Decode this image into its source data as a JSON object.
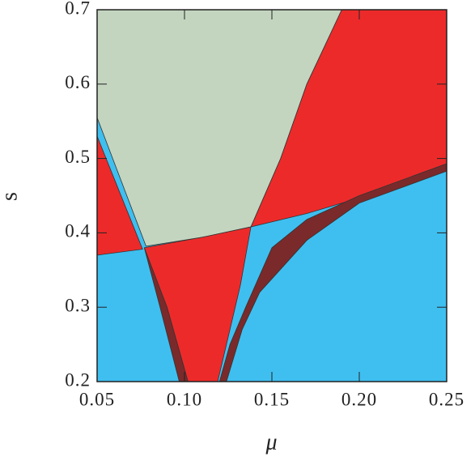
{
  "chart_data": {
    "type": "region",
    "x_label": "μ",
    "y_label": "s",
    "xlim": [
      0.05,
      0.25
    ],
    "ylim": [
      0.2,
      0.7
    ],
    "xticks": [
      {
        "value": 0.05,
        "label": "0.05"
      },
      {
        "value": 0.1,
        "label": "0.10"
      },
      {
        "value": 0.15,
        "label": "0.15"
      },
      {
        "value": 0.2,
        "label": "0.20"
      },
      {
        "value": 0.25,
        "label": "0.25"
      }
    ],
    "yticks": [
      0.2,
      0.3,
      0.4,
      0.5,
      0.6,
      0.7
    ],
    "regions": [
      {
        "color": "#3fbff0",
        "x": [
          0.05,
          0.25,
          0.25,
          0.05
        ],
        "y": [
          0.2,
          0.2,
          0.7,
          0.7
        ]
      },
      {
        "color": "#c3d5bf",
        "x": [
          0.05,
          0.05,
          0.19,
          0.17,
          0.155,
          0.138,
          0.11,
          0.078
        ],
        "y": [
          0.555,
          0.7,
          0.7,
          0.6,
          0.5,
          0.408,
          0.394,
          0.382
        ]
      },
      {
        "color": "#ed2a2a",
        "x": [
          0.19,
          0.25,
          0.25,
          0.2,
          0.17,
          0.138,
          0.155,
          0.17
        ],
        "y": [
          0.7,
          0.7,
          0.49,
          0.447,
          0.426,
          0.408,
          0.5,
          0.6
        ]
      },
      {
        "color": "#ed2a2a",
        "x": [
          0.05,
          0.05,
          0.076
        ],
        "y": [
          0.37,
          0.53,
          0.378
        ]
      },
      {
        "color": "#ed2a2a",
        "x": [
          0.077,
          0.11,
          0.138,
          0.132,
          0.125,
          0.119,
          0.102,
          0.09
        ],
        "y": [
          0.38,
          0.394,
          0.408,
          0.33,
          0.26,
          0.2,
          0.2,
          0.3
        ]
      },
      {
        "color": "#7a2a2a",
        "x": [
          0.077,
          0.09,
          0.102,
          0.097,
          0.086
        ],
        "y": [
          0.38,
          0.3,
          0.2,
          0.2,
          0.3
        ]
      },
      {
        "color": "#7a2a2a",
        "x": [
          0.124,
          0.133,
          0.143,
          0.17,
          0.2,
          0.25,
          0.25,
          0.2,
          0.17,
          0.15,
          0.135,
          0.126,
          0.12
        ],
        "y": [
          0.2,
          0.27,
          0.32,
          0.39,
          0.44,
          0.483,
          0.493,
          0.45,
          0.418,
          0.38,
          0.3,
          0.25,
          0.2
        ]
      }
    ]
  }
}
